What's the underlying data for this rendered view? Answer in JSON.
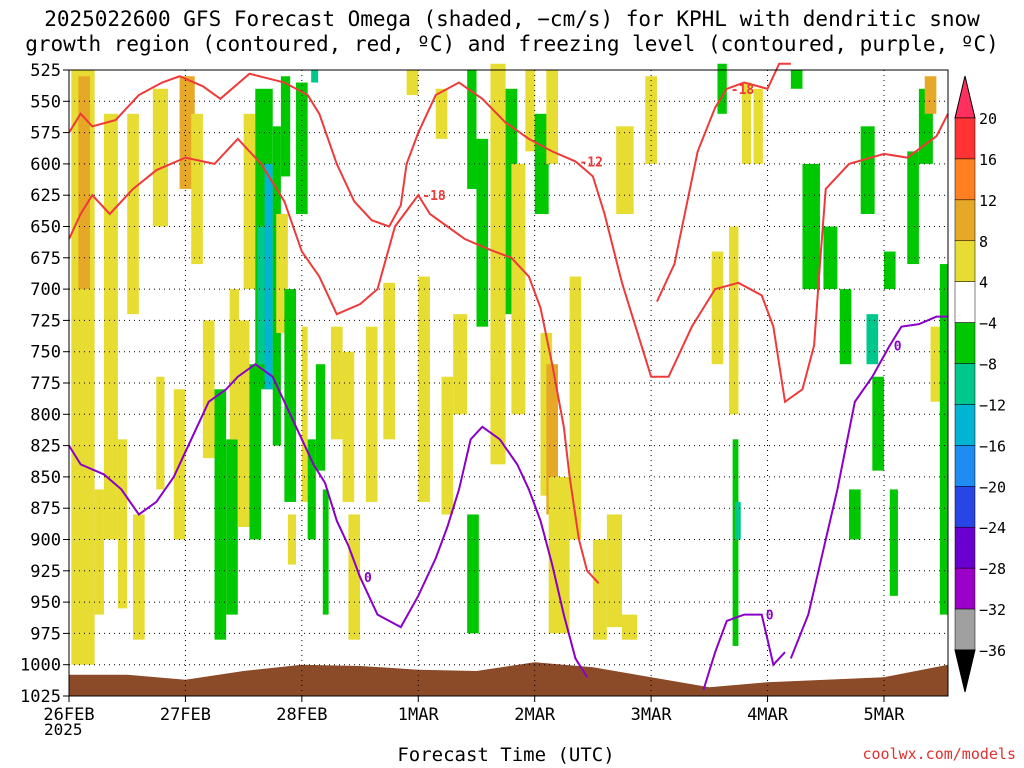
{
  "header": {
    "title_line1": "2025022600 GFS Forecast Omega (shaded, −cm/s) for KPHL with dendritic snow",
    "title_line2": "growth region (contoured, red, ºC) and freezing level (contoured, purple, ºC)"
  },
  "footer": {
    "xlabel": "Forecast Time (UTC)",
    "watermark": "coolwx.com/models",
    "year": "2025"
  },
  "chart_data": {
    "type": "heatmap",
    "x_tick_labels": [
      "26FEB",
      "27FEB",
      "28FEB",
      "1MAR",
      "2MAR",
      "3MAR",
      "4MAR",
      "5MAR"
    ],
    "x_range_days": [
      0,
      7.55
    ],
    "y_tick_labels": [
      525,
      550,
      575,
      600,
      625,
      650,
      675,
      700,
      725,
      750,
      775,
      800,
      825,
      850,
      875,
      900,
      925,
      950,
      975,
      1000,
      1025
    ],
    "y_unit": "hPa",
    "ylim": [
      1025,
      525
    ],
    "grid": true,
    "colorbar": {
      "labels": [
        "20",
        "16",
        "12",
        "8",
        "4",
        "−4",
        "−8",
        "−12",
        "−16",
        "−20",
        "−24",
        "−28",
        "−32",
        "−36"
      ],
      "colors": [
        "#ff3060",
        "#ff3333",
        "#ff8020",
        "#e6a827",
        "#e6dc32",
        "#ffffff",
        "#00c800",
        "#00c88c",
        "#00b4d2",
        "#1e8cf0",
        "#2846e6",
        "#6a00d0",
        "#9b00c8",
        "#a0a0a0",
        "#000000"
      ]
    },
    "dgz_contours": [
      {
        "label": "-12",
        "points": [
          [
            0,
            575
          ],
          [
            0.1,
            560
          ],
          [
            0.2,
            570
          ],
          [
            0.4,
            565
          ],
          [
            0.6,
            545
          ],
          [
            0.8,
            535
          ],
          [
            0.95,
            530
          ],
          [
            1.15,
            538
          ],
          [
            1.3,
            548
          ],
          [
            1.55,
            528
          ],
          [
            1.85,
            535
          ],
          [
            2.05,
            545
          ],
          [
            2.15,
            560
          ],
          [
            2.3,
            600
          ],
          [
            2.45,
            630
          ],
          [
            2.6,
            645
          ],
          [
            2.75,
            650
          ],
          [
            2.85,
            633
          ],
          [
            2.9,
            600
          ],
          [
            3.0,
            575
          ],
          [
            3.15,
            545
          ],
          [
            3.35,
            535
          ],
          [
            3.55,
            548
          ],
          [
            3.75,
            567
          ],
          [
            3.95,
            580
          ],
          [
            4.15,
            590
          ],
          [
            4.35,
            598
          ],
          [
            4.5,
            610
          ],
          [
            4.6,
            640
          ],
          [
            4.75,
            695
          ],
          [
            4.85,
            725
          ],
          [
            4.95,
            755
          ],
          [
            5.0,
            770
          ],
          [
            5.15,
            770
          ],
          [
            5.35,
            730
          ],
          [
            5.55,
            700
          ],
          [
            5.75,
            695
          ],
          [
            5.95,
            705
          ],
          [
            6.05,
            730
          ],
          [
            6.15,
            790
          ],
          [
            6.3,
            780
          ],
          [
            6.4,
            745
          ],
          [
            6.45,
            680
          ],
          [
            6.5,
            620
          ],
          [
            6.7,
            600
          ],
          [
            7.0,
            592
          ],
          [
            7.2,
            595
          ],
          [
            7.45,
            578
          ],
          [
            7.55,
            560
          ]
        ]
      },
      {
        "label": "-18",
        "points": [
          [
            0,
            660
          ],
          [
            0.1,
            640
          ],
          [
            0.2,
            625
          ],
          [
            0.35,
            640
          ],
          [
            0.55,
            620
          ],
          [
            0.75,
            605
          ],
          [
            1.0,
            595
          ],
          [
            1.25,
            600
          ],
          [
            1.45,
            580
          ],
          [
            1.65,
            600
          ],
          [
            1.85,
            630
          ],
          [
            2.0,
            670
          ],
          [
            2.15,
            690
          ],
          [
            2.3,
            720
          ],
          [
            2.5,
            712
          ],
          [
            2.65,
            700
          ],
          [
            2.8,
            650
          ],
          [
            3.0,
            625
          ],
          [
            3.1,
            640
          ],
          [
            3.25,
            650
          ],
          [
            3.4,
            660
          ],
          [
            3.6,
            668
          ],
          [
            3.8,
            675
          ],
          [
            3.95,
            690
          ],
          [
            4.05,
            715
          ],
          [
            4.15,
            760
          ],
          [
            4.25,
            810
          ],
          [
            4.3,
            850
          ],
          [
            4.38,
            900
          ],
          [
            4.45,
            925
          ],
          [
            4.55,
            935
          ]
        ]
      },
      {
        "label": "-18",
        "points": [
          [
            5.05,
            710
          ],
          [
            5.2,
            680
          ],
          [
            5.3,
            635
          ],
          [
            5.4,
            590
          ],
          [
            5.55,
            555
          ],
          [
            5.65,
            540
          ],
          [
            5.8,
            535
          ],
          [
            6.0,
            540
          ],
          [
            6.1,
            520
          ],
          [
            6.2,
            520
          ]
        ]
      }
    ],
    "freezing_level": [
      {
        "label": "0",
        "points": [
          [
            0,
            825
          ],
          [
            0.1,
            840
          ],
          [
            0.3,
            848
          ],
          [
            0.45,
            860
          ],
          [
            0.6,
            880
          ],
          [
            0.75,
            870
          ],
          [
            0.9,
            850
          ],
          [
            1.05,
            820
          ],
          [
            1.2,
            790
          ],
          [
            1.35,
            780
          ],
          [
            1.45,
            770
          ],
          [
            1.6,
            760
          ],
          [
            1.75,
            770
          ],
          [
            1.9,
            800
          ],
          [
            2.0,
            820
          ],
          [
            2.1,
            840
          ],
          [
            2.2,
            855
          ],
          [
            2.3,
            885
          ],
          [
            2.4,
            905
          ],
          [
            2.5,
            930
          ],
          [
            2.65,
            960
          ],
          [
            2.85,
            970
          ],
          [
            3.0,
            945
          ],
          [
            3.15,
            915
          ],
          [
            3.25,
            890
          ],
          [
            3.35,
            860
          ],
          [
            3.45,
            820
          ],
          [
            3.55,
            810
          ],
          [
            3.7,
            820
          ],
          [
            3.85,
            840
          ],
          [
            3.95,
            860
          ],
          [
            4.05,
            885
          ],
          [
            4.15,
            920
          ],
          [
            4.25,
            960
          ],
          [
            4.35,
            995
          ],
          [
            4.45,
            1010
          ]
        ]
      },
      {
        "label": "0",
        "points": [
          [
            5.45,
            1020
          ],
          [
            5.55,
            990
          ],
          [
            5.65,
            965
          ],
          [
            5.8,
            960
          ],
          [
            5.95,
            960
          ],
          [
            6.0,
            980
          ],
          [
            6.05,
            1000
          ],
          [
            6.15,
            990
          ]
        ]
      },
      {
        "label": "0",
        "points": [
          [
            6.2,
            995
          ],
          [
            6.35,
            960
          ],
          [
            6.45,
            920
          ],
          [
            6.6,
            860
          ],
          [
            6.75,
            790
          ],
          [
            6.9,
            770
          ],
          [
            7.05,
            745
          ],
          [
            7.15,
            730
          ],
          [
            7.3,
            728
          ],
          [
            7.45,
            722
          ],
          [
            7.55,
            722
          ]
        ]
      }
    ]
  }
}
